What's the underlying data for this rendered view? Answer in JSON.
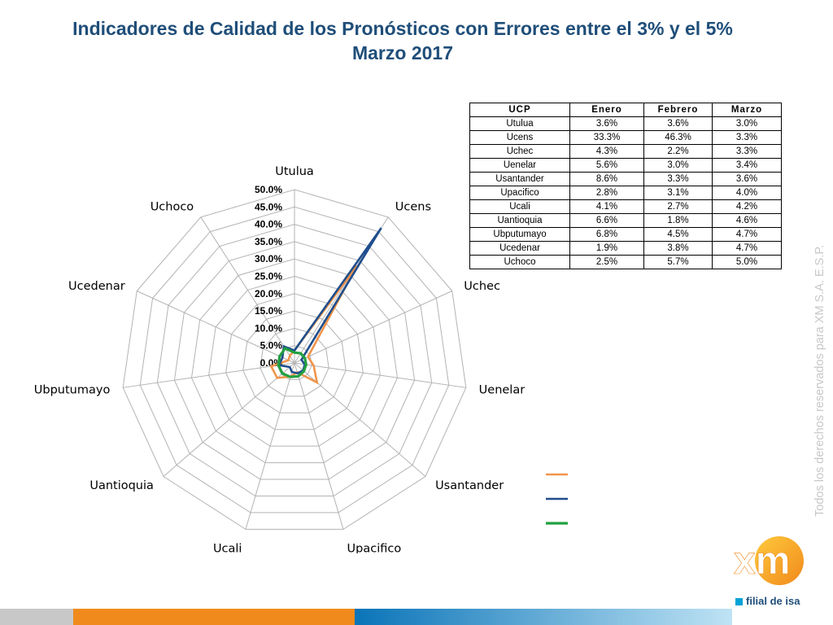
{
  "title": {
    "line1": "Indicadores de Calidad de los Pronósticos con Errores entre el 3% y el 5%",
    "line2": "Marzo 2017"
  },
  "chart_data": {
    "type": "radar",
    "categories": [
      "Utulua",
      "Ucens",
      "Uchec",
      "Uenelar",
      "Usantander",
      "Upacifico",
      "Ucali",
      "Uantioquia",
      "Ubputumayo",
      "Ucedenar",
      "Uchoco"
    ],
    "ticks": [
      "0.0%",
      "5.0%",
      "10.0%",
      "15.0%",
      "20.0%",
      "25.0%",
      "30.0%",
      "35.0%",
      "40.0%",
      "45.0%",
      "50.0%"
    ],
    "rlim": [
      0,
      50
    ],
    "grid": true,
    "legend_position": "bottom-right",
    "series": [
      {
        "name": "Enero",
        "color": "#f0944a",
        "values": [
          3.6,
          33.3,
          4.3,
          5.6,
          8.6,
          2.8,
          4.1,
          6.6,
          6.8,
          1.9,
          2.5
        ]
      },
      {
        "name": "Febrero",
        "color": "#1f4e8c",
        "values": [
          3.6,
          46.3,
          2.2,
          3.0,
          3.3,
          3.1,
          2.7,
          1.8,
          4.5,
          3.8,
          5.7
        ]
      },
      {
        "name": "Marzo",
        "color": "#22a040",
        "values": [
          3.0,
          3.3,
          3.3,
          3.4,
          3.6,
          4.0,
          4.2,
          4.6,
          4.7,
          4.7,
          5.0
        ]
      }
    ]
  },
  "table": {
    "headers": [
      "UCP",
      "Enero",
      "Febrero",
      "Marzo"
    ],
    "rows": [
      [
        "Utulua",
        "3.6%",
        "3.6%",
        "3.0%"
      ],
      [
        "Ucens",
        "33.3%",
        "46.3%",
        "3.3%"
      ],
      [
        "Uchec",
        "4.3%",
        "2.2%",
        "3.3%"
      ],
      [
        "Uenelar",
        "5.6%",
        "3.0%",
        "3.4%"
      ],
      [
        "Usantander",
        "8.6%",
        "3.3%",
        "3.6%"
      ],
      [
        "Upacifico",
        "2.8%",
        "3.1%",
        "4.0%"
      ],
      [
        "Ucali",
        "4.1%",
        "2.7%",
        "4.2%"
      ],
      [
        "Uantioquia",
        "6.6%",
        "1.8%",
        "4.6%"
      ],
      [
        "Ubputumayo",
        "6.8%",
        "4.5%",
        "4.7%"
      ],
      [
        "Ucedenar",
        "1.9%",
        "3.8%",
        "4.7%"
      ],
      [
        "Uchoco",
        "2.5%",
        "5.7%",
        "5.0%"
      ]
    ]
  },
  "side_text": "Todos los derechos reservados para XM S.A. E.S.P.",
  "logo": {
    "text": "xm",
    "subtitle": "filial de isa",
    "icon": "xm-logo-icon"
  },
  "colors": {
    "title": "#1f4e79",
    "accent_orange": "#f08a1c",
    "accent_blue": "#0a74b8"
  }
}
